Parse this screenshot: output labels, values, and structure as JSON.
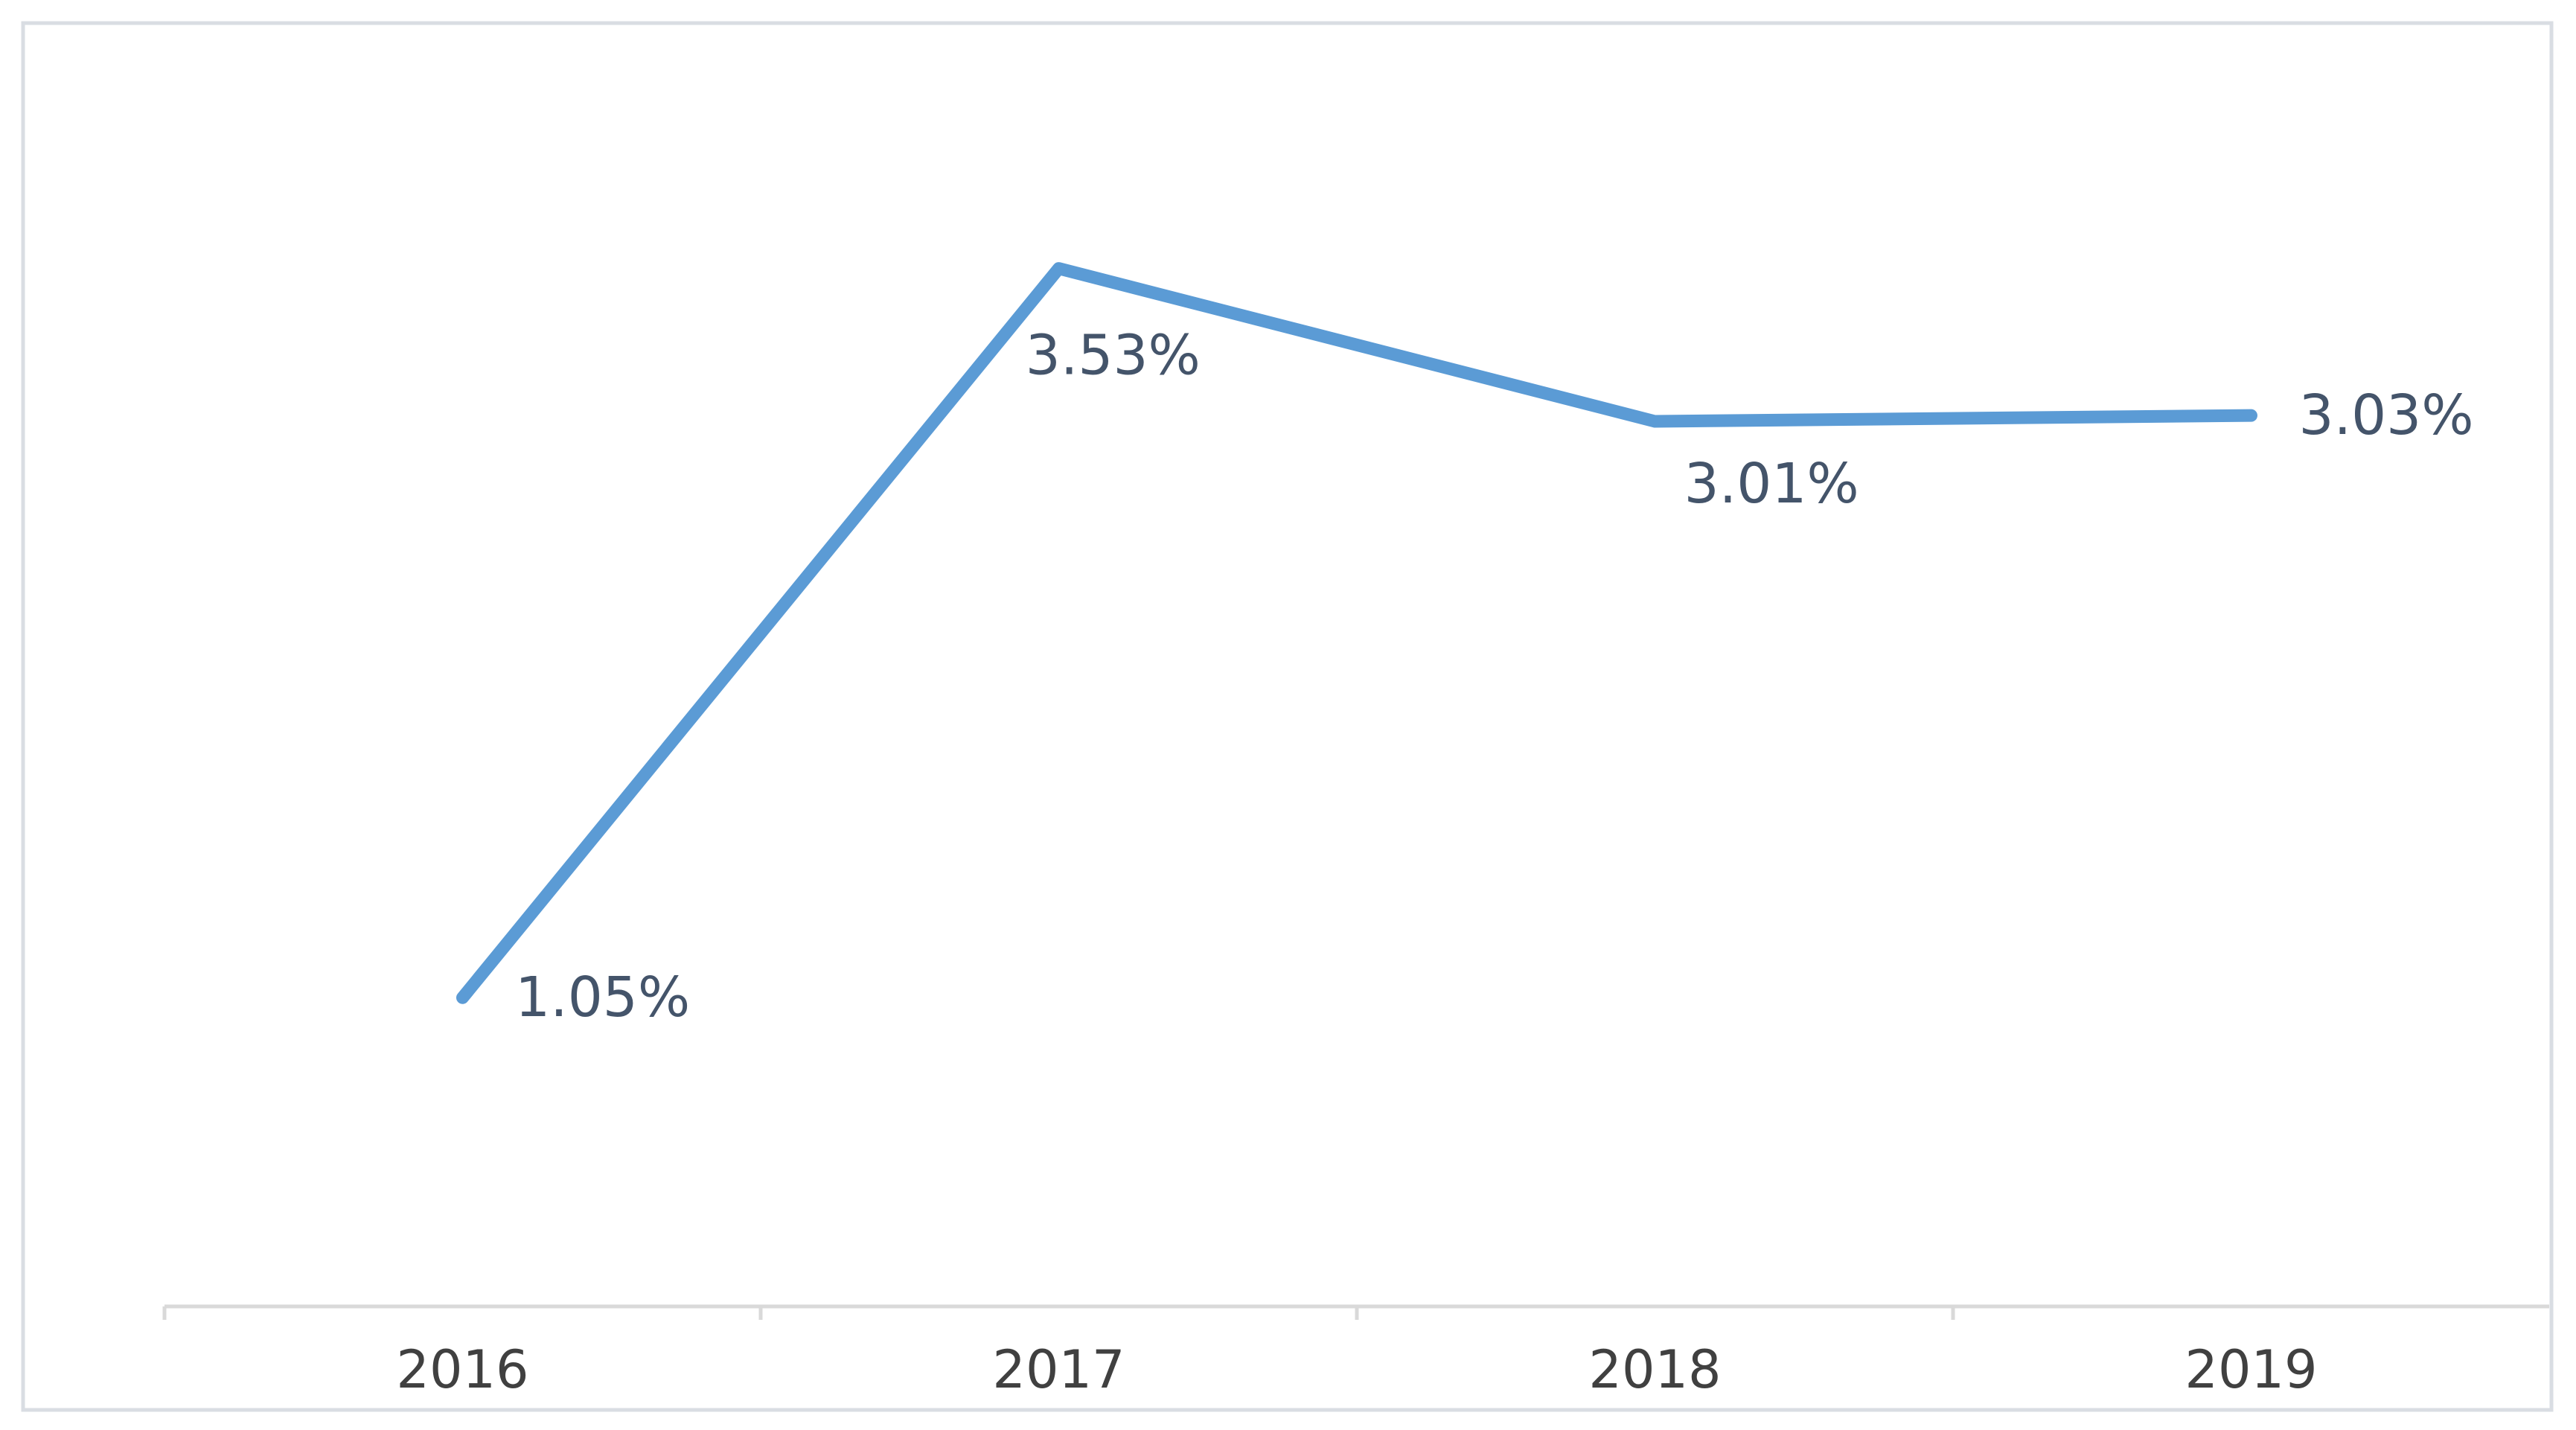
{
  "chart_data": {
    "type": "line",
    "categories": [
      "2016",
      "2017",
      "2018",
      "2019"
    ],
    "series": [
      {
        "color": "#5b9bd5",
        "values": [
          1.05,
          3.53,
          3.01,
          3.03
        ],
        "value_labels": [
          "1.05%",
          "3.53%",
          "3.01%",
          "3.03%"
        ]
      }
    ],
    "ylim": [
      0,
      4.4
    ]
  }
}
